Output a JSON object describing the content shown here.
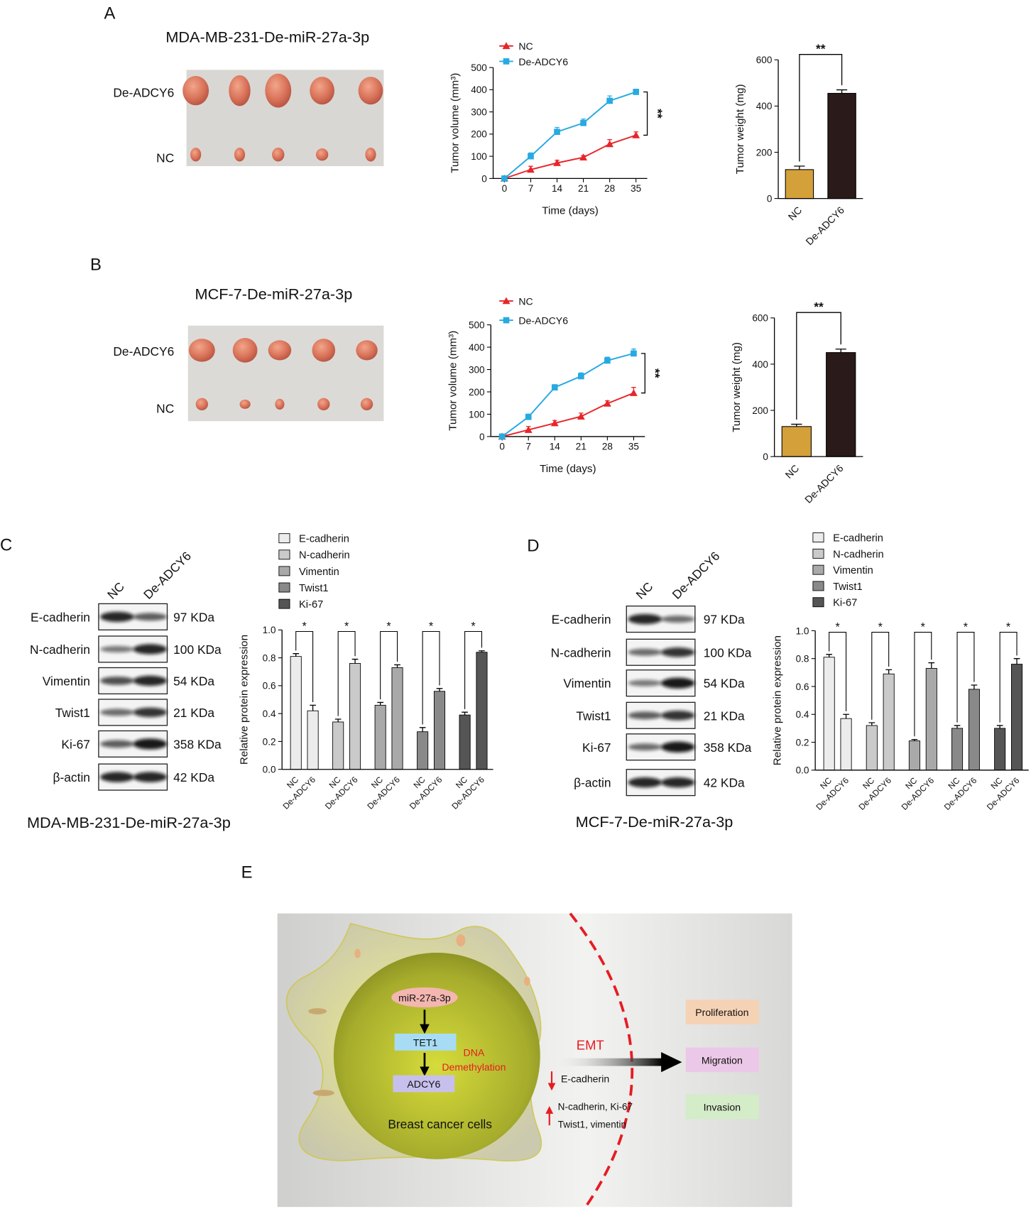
{
  "chart_data": [
    {
      "type": "line",
      "x": [
        0,
        7,
        14,
        21,
        28,
        35
      ],
      "xlim": [
        -3,
        38
      ],
      "xticks": [
        0,
        7,
        14,
        21,
        28,
        35
      ],
      "ylim": [
        0,
        500
      ],
      "yticks": [
        0,
        100,
        200,
        300,
        400,
        500
      ],
      "x_label": "Time (days)",
      "y_label": "Tumor volume (mm³)",
      "annotation": "**",
      "series": [
        {
          "name": "NC",
          "color": "#e8252a",
          "marker": "triangle",
          "values": [
            0,
            40,
            70,
            95,
            155,
            195
          ],
          "errors": [
            0,
            15,
            12,
            8,
            20,
            15
          ]
        },
        {
          "name": "De-ADCY6",
          "color": "#27aae1",
          "marker": "square",
          "values": [
            0,
            100,
            210,
            250,
            350,
            390
          ],
          "errors": [
            0,
            15,
            20,
            18,
            22,
            12
          ]
        }
      ]
    },
    {
      "type": "bar",
      "categories": [
        "NC",
        "De-ADCY6"
      ],
      "values": [
        125,
        455
      ],
      "errors": [
        15,
        15
      ],
      "colors": [
        "#d4a03a",
        "#2a1a1a"
      ],
      "ylim": [
        0,
        600
      ],
      "yticks": [
        0,
        200,
        400,
        600
      ],
      "y_label": "Tumor weight (mg)",
      "annotation": "**"
    },
    {
      "type": "line",
      "x": [
        0,
        7,
        14,
        21,
        28,
        35
      ],
      "xlim": [
        -3,
        38
      ],
      "xticks": [
        0,
        7,
        14,
        21,
        28,
        35
      ],
      "ylim": [
        0,
        500
      ],
      "yticks": [
        0,
        100,
        200,
        300,
        400,
        500
      ],
      "x_label": "Time (days)",
      "y_label": "Tumor volume (mm³)",
      "annotation": "**",
      "series": [
        {
          "name": "NC",
          "color": "#e8252a",
          "marker": "triangle",
          "values": [
            0,
            30,
            60,
            90,
            148,
            195
          ],
          "errors": [
            0,
            15,
            12,
            15,
            12,
            25
          ]
        },
        {
          "name": "De-ADCY6",
          "color": "#27aae1",
          "marker": "square",
          "values": [
            0,
            88,
            220,
            270,
            340,
            372
          ],
          "errors": [
            0,
            12,
            12,
            15,
            15,
            20
          ]
        }
      ]
    },
    {
      "type": "bar",
      "categories": [
        "NC",
        "De-ADCY6"
      ],
      "values": [
        130,
        450
      ],
      "errors": [
        10,
        15
      ],
      "colors": [
        "#d4a03a",
        "#2a1a1a"
      ],
      "ylim": [
        0,
        600
      ],
      "yticks": [
        0,
        200,
        400,
        600
      ],
      "y_label": "Tumor weight (mg)",
      "annotation": "**"
    },
    {
      "type": "grouped_bar",
      "categories": [
        "NC",
        "De-ADCY6"
      ],
      "ylim": [
        0,
        1
      ],
      "yticks": [
        {
          "value": 0,
          "label": "0.0"
        },
        0.2,
        0.4,
        0.6,
        0.8,
        {
          "value": 1,
          "label": "1.0"
        }
      ],
      "y_label": "Relative protein expression",
      "annotation": "*",
      "series": [
        {
          "name": "E-cadherin",
          "color": "#ececec",
          "values": [
            0.81,
            0.42
          ],
          "errors": [
            0.02,
            0.04
          ]
        },
        {
          "name": "N-cadherin",
          "color": "#cacaca",
          "values": [
            0.34,
            0.76
          ],
          "errors": [
            0.02,
            0.03
          ]
        },
        {
          "name": "Vimentin",
          "color": "#a9a9a9",
          "values": [
            0.46,
            0.73
          ],
          "errors": [
            0.02,
            0.02
          ]
        },
        {
          "name": "Twist1",
          "color": "#898989",
          "values": [
            0.27,
            0.56
          ],
          "errors": [
            0.03,
            0.02
          ]
        },
        {
          "name": "Ki-67",
          "color": "#555555",
          "values": [
            0.39,
            0.84
          ],
          "errors": [
            0.02,
            0.01
          ]
        }
      ]
    },
    {
      "type": "grouped_bar",
      "categories": [
        "NC",
        "De-ADCY6"
      ],
      "ylim": [
        0,
        1
      ],
      "yticks": [
        {
          "value": 0,
          "label": "0.0"
        },
        0.2,
        0.4,
        0.6,
        0.8,
        {
          "value": 1,
          "label": "1.0"
        }
      ],
      "y_label": "Relative protein expression",
      "annotation": "*",
      "series": [
        {
          "name": "E-cadherin",
          "color": "#ececec",
          "values": [
            0.81,
            0.37
          ],
          "errors": [
            0.02,
            0.03
          ]
        },
        {
          "name": "N-cadherin",
          "color": "#cacaca",
          "values": [
            0.32,
            0.69
          ],
          "errors": [
            0.02,
            0.03
          ]
        },
        {
          "name": "Vimentin",
          "color": "#a9a9a9",
          "values": [
            0.21,
            0.73
          ],
          "errors": [
            0.01,
            0.04
          ]
        },
        {
          "name": "Twist1",
          "color": "#898989",
          "values": [
            0.3,
            0.58
          ],
          "errors": [
            0.02,
            0.03
          ]
        },
        {
          "name": "Ki-67",
          "color": "#555555",
          "values": [
            0.3,
            0.76
          ],
          "errors": [
            0.02,
            0.04
          ]
        }
      ]
    }
  ],
  "panels": {
    "A": {
      "label": "A",
      "title": "MDA-MB-231-De-miR-27a-3p",
      "rows": [
        "De-ADCY6",
        "NC"
      ]
    },
    "B": {
      "label": "B",
      "title": "MCF-7-De-miR-27a-3p",
      "rows": [
        "De-ADCY6",
        "NC"
      ]
    },
    "C": {
      "label": "C",
      "lanes": [
        "NC",
        "De-ADCY6"
      ],
      "proteins": [
        "E-cadherin",
        "N-cadherin",
        "Vimentin",
        "Twist1",
        "Ki-67",
        "β-actin"
      ],
      "sizes": [
        "97 KDa",
        "100 KDa",
        "54 KDa",
        "21 KDa",
        "358 KDa",
        "42 KDa"
      ],
      "caption": "MDA-MB-231-De-miR-27a-3p"
    },
    "D": {
      "label": "D",
      "lanes": [
        "NC",
        "De-ADCY6"
      ],
      "proteins": [
        "E-cadherin",
        "N-cadherin",
        "Vimentin",
        "Twist1",
        "Ki-67",
        "β-actin"
      ],
      "sizes": [
        "97 KDa",
        "100 KDa",
        "54 KDa",
        "21 KDa",
        "358 KDa",
        "42 KDa"
      ],
      "caption": "MCF-7-De-miR-27a-3p"
    },
    "E": {
      "label": "E",
      "pathway": [
        "miR-27a-3p",
        "TET1",
        "ADCY6"
      ],
      "mechanism": [
        "DNA",
        "Demethylation"
      ],
      "cell": "Breast cancer cells",
      "process": "EMT",
      "decreased": "E-cadherin",
      "increased": [
        "N-cadherin, Ki-67",
        "Twist1, vimentin"
      ],
      "outcomes": [
        "Proliferation",
        "Migration",
        "Invasion"
      ]
    }
  }
}
